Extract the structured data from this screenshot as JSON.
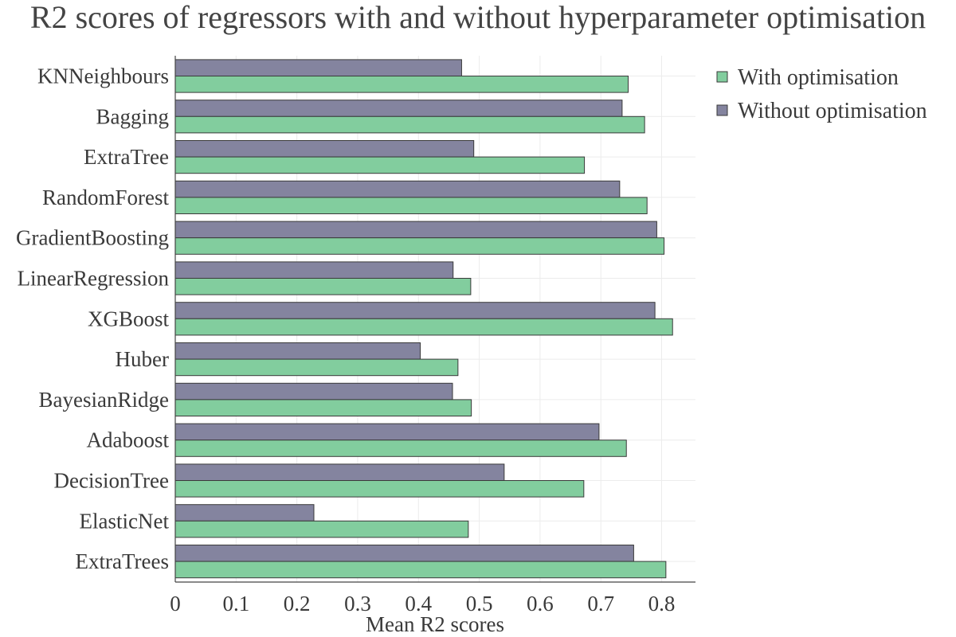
{
  "chart_data": {
    "type": "bar",
    "orientation": "horizontal",
    "title": "R2 scores of regressors with and without hyperparameter optimisation",
    "xlabel": "Mean R2 scores",
    "ylabel": "",
    "xlim": [
      0,
      0.86
    ],
    "xticks": [
      0,
      0.1,
      0.2,
      0.3,
      0.4,
      0.5,
      0.6,
      0.7,
      0.8
    ],
    "xtick_labels": [
      "0",
      "0.1",
      "0.2",
      "0.3",
      "0.4",
      "0.5",
      "0.6",
      "0.7",
      "0.8"
    ],
    "grid": true,
    "legend_position": "top-right",
    "categories": [
      "KNNeighbours",
      "Bagging",
      "ExtraTree",
      "RandomForest",
      "GradientBoosting",
      "LinearRegression",
      "XGBoost",
      "Huber",
      "BayesianRidge",
      "Adaboost",
      "DecisionTree",
      "ElasticNet",
      "ExtraTrees"
    ],
    "series": [
      {
        "name": "With optimisation",
        "color": "#82cd9e",
        "values": [
          0.745,
          0.772,
          0.673,
          0.776,
          0.804,
          0.486,
          0.818,
          0.465,
          0.487,
          0.742,
          0.672,
          0.482,
          0.807
        ]
      },
      {
        "name": "Without optimisation",
        "color": "#84849f",
        "values": [
          0.471,
          0.735,
          0.491,
          0.731,
          0.792,
          0.457,
          0.789,
          0.403,
          0.456,
          0.697,
          0.541,
          0.228,
          0.754
        ]
      }
    ]
  }
}
